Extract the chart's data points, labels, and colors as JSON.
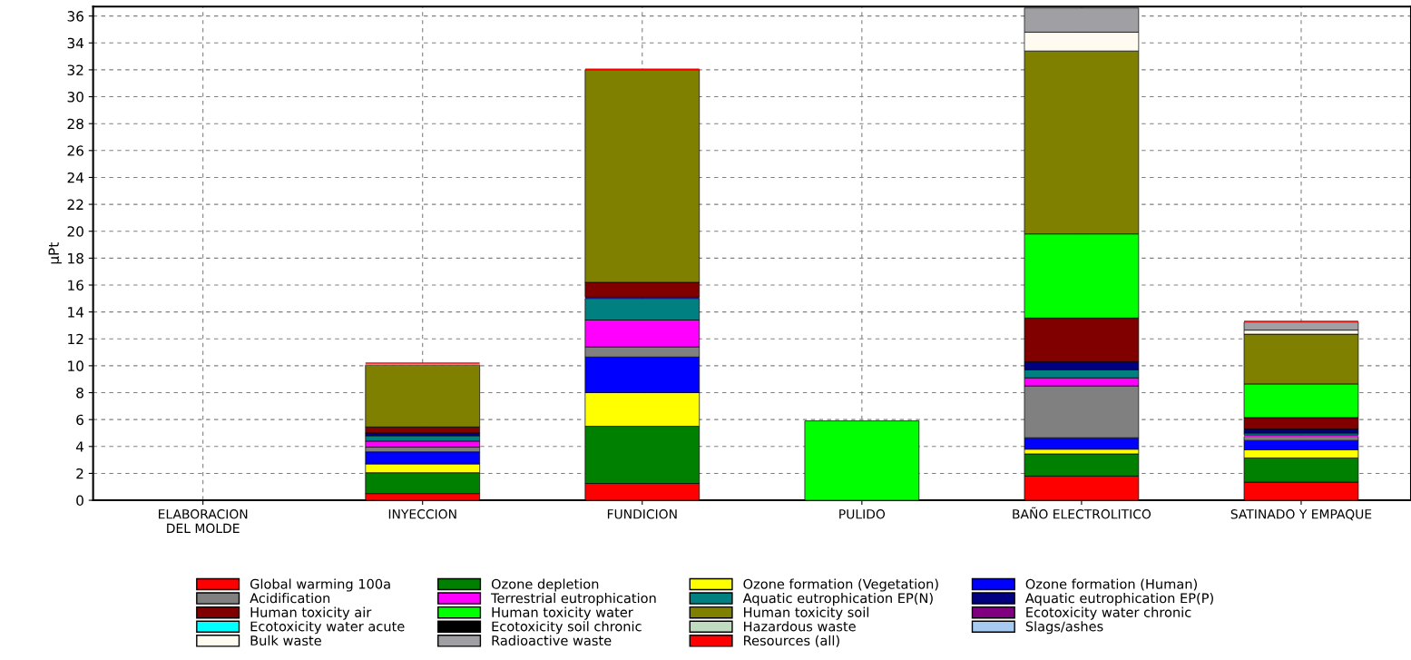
{
  "chart_data": {
    "type": "bar",
    "stacked": true,
    "ylabel": "µPt",
    "categories": [
      "ELABORACION\nDEL MOLDE",
      "INYECCION",
      "FUNDICION",
      "PULIDO",
      "BAÑO ELECTROLITICO",
      "SATINADO Y EMPAQUE"
    ],
    "ylim": [
      0,
      36.7
    ],
    "yticks": [
      0,
      2,
      4,
      6,
      8,
      10,
      12,
      14,
      16,
      18,
      20,
      22,
      24,
      26,
      28,
      30,
      32,
      34,
      36
    ],
    "grid": true,
    "legend": "bottom",
    "series": [
      {
        "name": "Global warming 100a",
        "color": "#ff0000",
        "values": [
          0,
          0.5,
          1.25,
          0,
          1.8,
          1.35
        ]
      },
      {
        "name": "Ozone depletion",
        "color": "#008000",
        "values": [
          0,
          1.55,
          4.25,
          0,
          1.65,
          1.8
        ]
      },
      {
        "name": "Ozone formation (Vegetation)",
        "color": "#ffff00",
        "values": [
          0,
          0.65,
          2.5,
          0,
          0.35,
          0.6
        ]
      },
      {
        "name": "Ozone formation (Human)",
        "color": "#0000ff",
        "values": [
          0,
          0.9,
          2.65,
          0,
          0.85,
          0.7
        ]
      },
      {
        "name": "Acidification",
        "color": "#808080",
        "values": [
          0,
          0.35,
          0.75,
          0,
          3.85,
          0.3
        ]
      },
      {
        "name": "Terrestrial eutrophication",
        "color": "#ff00ff",
        "values": [
          0,
          0.45,
          2.0,
          0,
          0.6,
          0.1
        ]
      },
      {
        "name": "Aquatic eutrophication EP(N)",
        "color": "#008080",
        "values": [
          0,
          0.4,
          1.6,
          0,
          0.6,
          0.15
        ]
      },
      {
        "name": "Aquatic eutrophication EP(P)",
        "color": "#000080",
        "values": [
          0,
          0.2,
          0.1,
          0,
          0.6,
          0.3
        ]
      },
      {
        "name": "Human toxicity air",
        "color": "#800000",
        "values": [
          0,
          0.45,
          1.1,
          0,
          3.25,
          0.85
        ]
      },
      {
        "name": "Human toxicity water",
        "color": "#00ff00",
        "values": [
          0,
          0,
          0,
          5.9,
          6.25,
          2.5
        ]
      },
      {
        "name": "Human toxicity soil",
        "color": "#808000",
        "values": [
          0,
          4.6,
          15.8,
          0,
          13.6,
          3.7
        ]
      },
      {
        "name": "Ecotoxicity water chronic",
        "color": "#800080",
        "values": [
          0,
          0,
          0,
          0,
          0,
          0
        ]
      },
      {
        "name": "Ecotoxicity water acute",
        "color": "#00ffff",
        "values": [
          0,
          0,
          0,
          0,
          0,
          0
        ]
      },
      {
        "name": "Ecotoxicity soil chronic",
        "color": "#000000",
        "values": [
          0,
          0,
          0,
          0,
          0,
          0
        ]
      },
      {
        "name": "Hazardous waste",
        "color": "#c0dcc0",
        "values": [
          0,
          0,
          0,
          0,
          0,
          0
        ]
      },
      {
        "name": "Slags/ashes",
        "color": "#a6caf0",
        "values": [
          0,
          0,
          0,
          0,
          0,
          0
        ]
      },
      {
        "name": "Bulk waste",
        "color": "#fffbf0",
        "values": [
          0,
          0,
          0,
          0,
          1.4,
          0.3
        ]
      },
      {
        "name": "Radioactive waste",
        "color": "#a0a0a4",
        "values": [
          0,
          0.1,
          0,
          0,
          1.8,
          0.6
        ]
      },
      {
        "name": "Resources (all)",
        "color": "#ff0000",
        "values": [
          0,
          0.1,
          0.1,
          0.05,
          0,
          0.1
        ]
      }
    ]
  }
}
